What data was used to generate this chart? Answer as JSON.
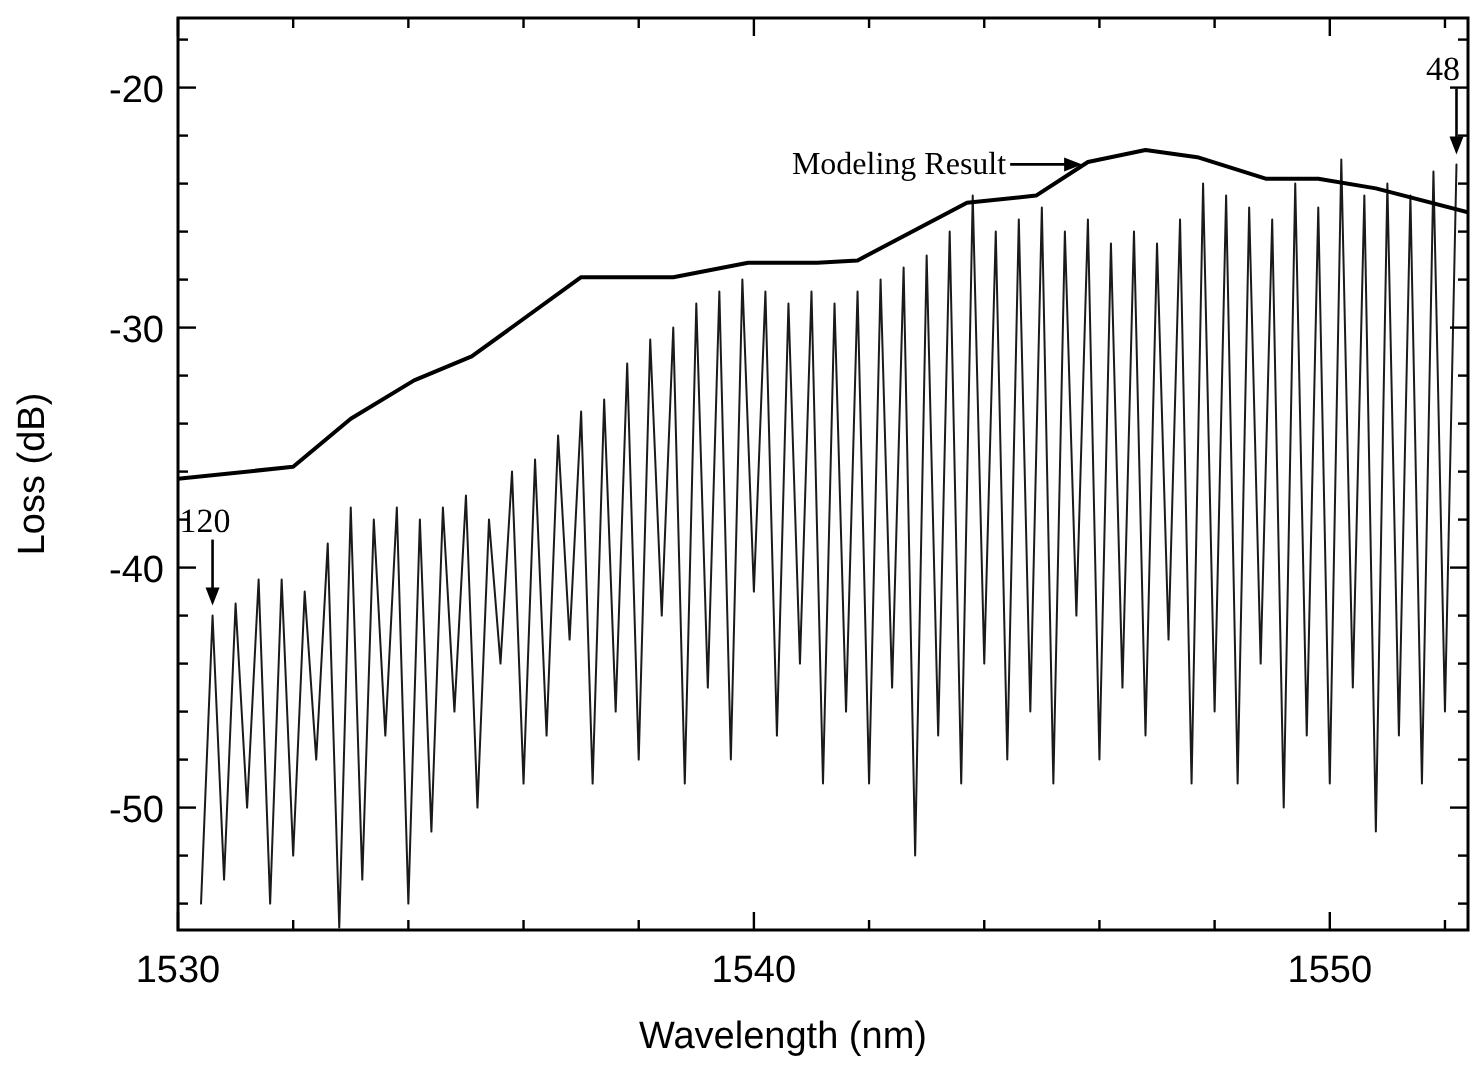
{
  "chart_data": {
    "type": "line",
    "xlabel": "Wavelength (nm)",
    "ylabel": "Loss (dB)",
    "xlim": [
      1530,
      1552.4
    ],
    "ylim": [
      -55.1,
      -17.1
    ],
    "xticks": [
      1530,
      {
        "value": 1532,
        "label": null
      },
      {
        "value": 1534,
        "label": null
      },
      {
        "value": 1536,
        "label": null
      },
      {
        "value": 1538,
        "label": null
      },
      1540,
      {
        "value": 1542,
        "label": null
      },
      {
        "value": 1544,
        "label": null
      },
      {
        "value": 1546,
        "label": null
      },
      {
        "value": 1548,
        "label": null
      },
      1550,
      {
        "value": 1552,
        "label": null
      }
    ],
    "yticks": [
      {
        "value": -54,
        "label": null
      },
      {
        "value": -52,
        "label": null
      },
      -50,
      {
        "value": -48,
        "label": null
      },
      {
        "value": -46,
        "label": null
      },
      {
        "value": -44,
        "label": null
      },
      {
        "value": -42,
        "label": null
      },
      -40,
      {
        "value": -38,
        "label": null
      },
      {
        "value": -36,
        "label": null
      },
      {
        "value": -34,
        "label": null
      },
      {
        "value": -32,
        "label": null
      },
      -30,
      {
        "value": -28,
        "label": null
      },
      {
        "value": -26,
        "label": null
      },
      {
        "value": -24,
        "label": null
      },
      {
        "value": -22,
        "label": null
      },
      -20,
      {
        "value": -18,
        "label": null
      }
    ],
    "grid": false,
    "marker": "none",
    "line_style": "solid",
    "series": [
      {
        "color": "#1a1a1a",
        "x": [
          1530.4,
          1530.6,
          1530.8,
          1531.0,
          1531.2,
          1531.4,
          1531.6,
          1531.8,
          1532.0,
          1532.2,
          1532.4,
          1532.6,
          1532.8,
          1533.0,
          1533.2,
          1533.4,
          1533.6,
          1533.8,
          1534.0,
          1534.2,
          1534.4,
          1534.6,
          1534.8,
          1535.0,
          1535.2,
          1535.4,
          1535.6,
          1535.8,
          1536.0,
          1536.2,
          1536.4,
          1536.6,
          1536.8,
          1537.0,
          1537.2,
          1537.4,
          1537.6,
          1537.8,
          1538.0,
          1538.2,
          1538.4,
          1538.6,
          1538.8,
          1539.0,
          1539.2,
          1539.4,
          1539.6,
          1539.8,
          1540.0,
          1540.2,
          1540.4,
          1540.6,
          1540.8,
          1541.0,
          1541.2,
          1541.4,
          1541.6,
          1541.8,
          1542.0,
          1542.2,
          1542.4,
          1542.6,
          1542.8,
          1543.0,
          1543.2,
          1543.4,
          1543.6,
          1543.8,
          1544.0,
          1544.2,
          1544.4,
          1544.6,
          1544.8,
          1545.0,
          1545.2,
          1545.4,
          1545.6,
          1545.8,
          1546.0,
          1546.2,
          1546.4,
          1546.6,
          1546.8,
          1547.0,
          1547.2,
          1547.4,
          1547.6,
          1547.8,
          1548.0,
          1548.2,
          1548.4,
          1548.6,
          1548.8,
          1549.0,
          1549.2,
          1549.4,
          1549.6,
          1549.8,
          1550.0,
          1550.2,
          1550.4,
          1550.6,
          1550.8,
          1551.0,
          1551.2,
          1551.4,
          1551.6,
          1551.8,
          1552.0,
          1552.2
        ],
        "values": [
          -54,
          -42,
          -53,
          -41.5,
          -50,
          -40.5,
          -54,
          -40.5,
          -52,
          -41,
          -48,
          -39,
          -55,
          -37.5,
          -53,
          -38,
          -47,
          -37.5,
          -54,
          -38,
          -51,
          -37.5,
          -46,
          -37,
          -50,
          -38,
          -44,
          -36,
          -49,
          -35.5,
          -47,
          -34.5,
          -43,
          -33.5,
          -49,
          -33,
          -46,
          -31.5,
          -48,
          -30.5,
          -42,
          -30,
          -49,
          -29,
          -45,
          -28.5,
          -48,
          -28,
          -41,
          -28.5,
          -47,
          -29,
          -44,
          -28.5,
          -49,
          -29,
          -46,
          -28.5,
          -49,
          -28,
          -45,
          -27.5,
          -52,
          -27,
          -47,
          -26,
          -49,
          -24.5,
          -44,
          -26,
          -48,
          -25.5,
          -46,
          -25,
          -49,
          -26,
          -42,
          -25.5,
          -48,
          -26.5,
          -45,
          -26,
          -47,
          -26.5,
          -43,
          -25.5,
          -49,
          -24,
          -46,
          -24.5,
          -49,
          -25,
          -44,
          -25.5,
          -50,
          -24,
          -47,
          -25,
          -49,
          -23,
          -45,
          -24.5,
          -51,
          -24,
          -47,
          -24.5,
          -49,
          -23.5,
          -46,
          -23.2
        ]
      },
      {
        "color": "#000000",
        "x": [
          1530,
          1532.0,
          1533.0,
          1534.1,
          1535.1,
          1537.0,
          1538.6,
          1539.9,
          1541.1,
          1541.8,
          1543.7,
          1544.9,
          1545.8,
          1546.8,
          1547.7,
          1548.9,
          1549.8,
          1550.8,
          1552.4
        ],
        "values": [
          -36.3,
          -35.8,
          -33.8,
          -32.2,
          -31.2,
          -27.9,
          -27.9,
          -27.3,
          -27.3,
          -27.2,
          -24.8,
          -24.5,
          -23.1,
          -22.6,
          -22.9,
          -23.8,
          -23.8,
          -24.2,
          -25.2
        ]
      }
    ],
    "annotations": [
      {
        "text": "Modeling Result",
        "x": 1545.7,
        "y": -23.2
      },
      {
        "text": "120",
        "x": 1530.6,
        "y": -42
      },
      {
        "text": "48",
        "x": 1552.2,
        "y": -23.2
      }
    ]
  }
}
